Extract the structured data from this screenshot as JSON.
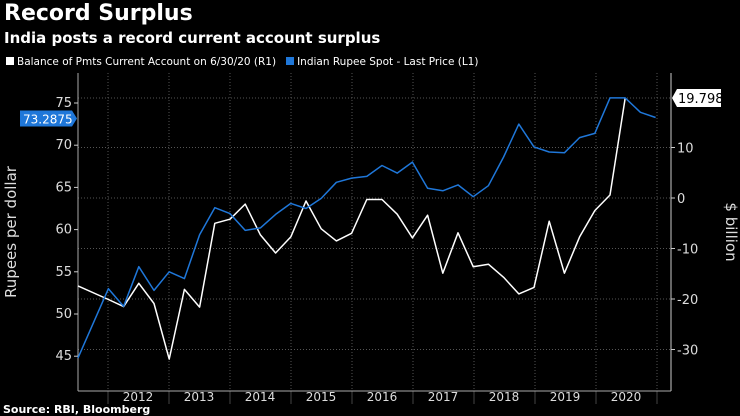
{
  "title": "Record Surplus",
  "subtitle": "India posts a record current account surplus",
  "source": "Source: RBI, Bloomberg",
  "chart_data": {
    "type": "line",
    "x": [
      "2011-06-30",
      "2011-09-30",
      "2011-12-31",
      "2012-03-31",
      "2012-06-30",
      "2012-09-30",
      "2012-12-31",
      "2013-03-31",
      "2013-06-30",
      "2013-09-30",
      "2013-12-31",
      "2014-03-31",
      "2014-06-30",
      "2014-09-30",
      "2014-12-31",
      "2015-03-31",
      "2015-06-30",
      "2015-09-30",
      "2015-12-31",
      "2016-03-31",
      "2016-06-30",
      "2016-09-30",
      "2016-12-31",
      "2017-03-31",
      "2017-06-30",
      "2017-09-30",
      "2017-12-31",
      "2018-03-31",
      "2018-06-30",
      "2018-09-30",
      "2018-12-31",
      "2019-03-31",
      "2019-06-30",
      "2019-09-30",
      "2019-12-31",
      "2020-03-31",
      "2020-06-30",
      "2020-09-30",
      "2020-12-31"
    ],
    "x_tick_labels": [
      "2012",
      "2013",
      "2014",
      "2015",
      "2016",
      "2017",
      "2018",
      "2019",
      "2020"
    ],
    "series": [
      {
        "name": "Balance of Pmts Current Account on 6/30/20 (R1)",
        "axis": "right",
        "color": "#ffffff",
        "values": [
          -17.4,
          null,
          -20.1,
          -21.5,
          -16.9,
          -20.9,
          -31.9,
          -18.1,
          -21.6,
          -5.0,
          -4.2,
          -1.2,
          -7.3,
          -10.9,
          -7.7,
          -0.6,
          -6.1,
          -8.5,
          -7.0,
          -0.3,
          -0.3,
          -3.2,
          -7.9,
          -3.4,
          -14.9,
          -6.9,
          -13.6,
          -13.1,
          -15.7,
          -19.0,
          -17.7,
          -4.6,
          -14.9,
          -7.7,
          -2.5,
          0.6,
          19.798,
          null,
          null
        ],
        "last_value_label": "19.798"
      },
      {
        "name": "Indian Rupee Spot - Last Price (L1)",
        "axis": "left",
        "color": "#1f77d9",
        "values": [
          44.8,
          null,
          53.0,
          50.9,
          55.6,
          52.8,
          55.0,
          54.2,
          59.4,
          62.6,
          61.9,
          59.9,
          60.2,
          61.8,
          63.1,
          62.5,
          63.7,
          65.6,
          66.1,
          66.3,
          67.6,
          66.7,
          68.0,
          64.9,
          64.6,
          65.3,
          63.9,
          65.2,
          68.6,
          72.5,
          69.8,
          69.2,
          69.1,
          70.9,
          71.4,
          75.6,
          75.6,
          73.9,
          73.2875
        ],
        "last_value_label": "73.2875"
      }
    ],
    "left_axis": {
      "label": "Rupees per dollar",
      "ylim": [
        43,
        78
      ],
      "ticks": [
        "45",
        "50",
        "55",
        "60",
        "65",
        "70",
        "75"
      ]
    },
    "right_axis": {
      "label": "$ billion",
      "ylim": [
        -36,
        25
      ],
      "ticks": [
        "-30",
        "-20",
        "-10",
        "0",
        "10"
      ]
    },
    "grid": true,
    "legend": "top-left"
  }
}
